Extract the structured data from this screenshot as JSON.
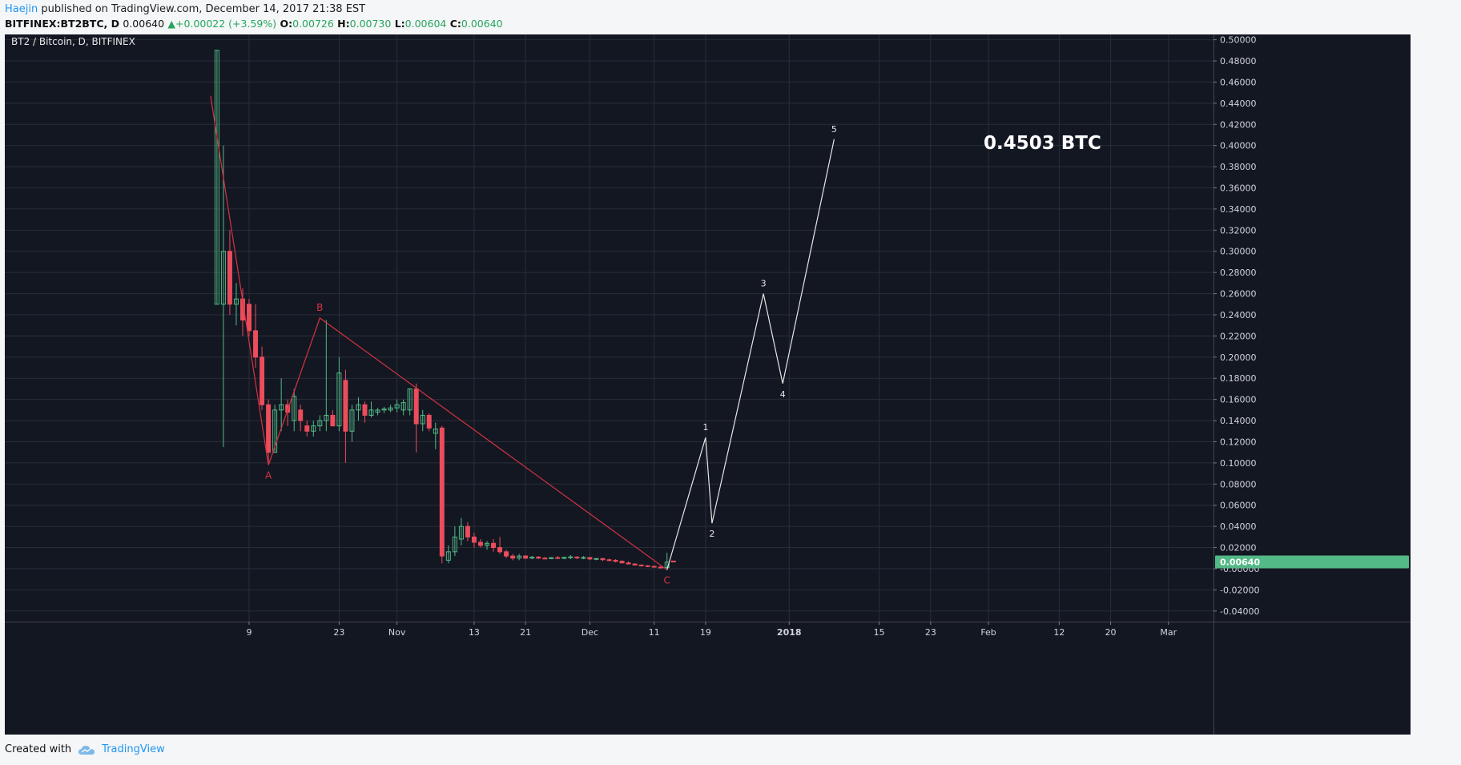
{
  "header": {
    "author": "Haejin",
    "published": "published on TradingView.com, December 14, 2017 21:38 EST"
  },
  "quote": {
    "symbol": "BITFINEX:BT2BTC, D",
    "last": "0.00640",
    "change_arrow": "▲",
    "change": "+0.00022 (+3.59%)",
    "o_label": "O:",
    "o": "0.00726",
    "h_label": "H:",
    "h": "0.00730",
    "l_label": "L:",
    "l": "0.00604",
    "c_label": "C:",
    "c": "0.00640"
  },
  "footer": {
    "created_with": "Created with",
    "brand": "TradingView",
    "brand_icon": "tradingview-cloud-icon"
  },
  "colors": {
    "background": "#131722",
    "grid": "#2a2e39",
    "up": "#53b987",
    "down": "#eb4d5c",
    "wave_abc": "#d63340",
    "projection": "#e6e6e6",
    "axis_text": "#d1d4dc",
    "price_badge": "#53b987"
  },
  "chart_data": {
    "type": "candlestick",
    "title": "BT2 / Bitcoin, D, BITFINEX",
    "annotation": "0.4503 BTC",
    "ylim": [
      -0.05,
      0.505
    ],
    "y_ticks": [
      0.5,
      0.48,
      0.46,
      0.44,
      0.42,
      0.4,
      0.38,
      0.36,
      0.34,
      0.32,
      0.3,
      0.28,
      0.26,
      0.24,
      0.22,
      0.2,
      0.18,
      0.16,
      0.14,
      0.12,
      0.1,
      0.08,
      0.06,
      0.04,
      0.02,
      0.0,
      -0.02,
      -0.04
    ],
    "y_tick_labels": [
      "0.50000",
      "0.48000",
      "0.46000",
      "0.44000",
      "0.42000",
      "0.40000",
      "0.38000",
      "0.36000",
      "0.34000",
      "0.32000",
      "0.30000",
      "0.28000",
      "0.26000",
      "0.24000",
      "0.22000",
      "0.20000",
      "0.18000",
      "0.16000",
      "0.14000",
      "0.12000",
      "0.10000",
      "0.08000",
      "0.06000",
      "0.04000",
      "0.02000",
      "-0.00000",
      "-0.02000",
      "-0.04000"
    ],
    "x_range": [
      "2017-09-01",
      "2018-03-08"
    ],
    "x_ticks": [
      {
        "date": "2017-10-09",
        "label": "9",
        "bold": false
      },
      {
        "date": "2017-10-23",
        "label": "23",
        "bold": false
      },
      {
        "date": "2017-11-01",
        "label": "Nov",
        "bold": false
      },
      {
        "date": "2017-11-13",
        "label": "13",
        "bold": false
      },
      {
        "date": "2017-11-21",
        "label": "21",
        "bold": false
      },
      {
        "date": "2017-12-01",
        "label": "Dec",
        "bold": false
      },
      {
        "date": "2017-12-11",
        "label": "11",
        "bold": false
      },
      {
        "date": "2017-12-19",
        "label": "19",
        "bold": false
      },
      {
        "date": "2018-01-01",
        "label": "2018",
        "bold": true
      },
      {
        "date": "2018-01-15",
        "label": "15",
        "bold": false
      },
      {
        "date": "2018-01-23",
        "label": "23",
        "bold": false
      },
      {
        "date": "2018-02-01",
        "label": "Feb",
        "bold": false
      },
      {
        "date": "2018-02-12",
        "label": "12",
        "bold": false
      },
      {
        "date": "2018-02-20",
        "label": "20",
        "bold": false
      },
      {
        "date": "2018-03-01",
        "label": "Mar",
        "bold": false
      }
    ],
    "last_price_label": "0.00640",
    "last_price": 0.0064,
    "candles": [
      {
        "date": "2017-10-04",
        "o": 0.25,
        "h": 0.49,
        "l": 0.25,
        "c": 0.49
      },
      {
        "date": "2017-10-05",
        "o": 0.25,
        "h": 0.4,
        "l": 0.115,
        "c": 0.3
      },
      {
        "date": "2017-10-06",
        "o": 0.3,
        "h": 0.32,
        "l": 0.24,
        "c": 0.25
      },
      {
        "date": "2017-10-07",
        "o": 0.25,
        "h": 0.27,
        "l": 0.23,
        "c": 0.255
      },
      {
        "date": "2017-10-08",
        "o": 0.255,
        "h": 0.265,
        "l": 0.22,
        "c": 0.235
      },
      {
        "date": "2017-10-09",
        "o": 0.25,
        "h": 0.255,
        "l": 0.22,
        "c": 0.225
      },
      {
        "date": "2017-10-10",
        "o": 0.225,
        "h": 0.25,
        "l": 0.19,
        "c": 0.2
      },
      {
        "date": "2017-10-11",
        "o": 0.2,
        "h": 0.21,
        "l": 0.15,
        "c": 0.155
      },
      {
        "date": "2017-10-12",
        "o": 0.155,
        "h": 0.16,
        "l": 0.1,
        "c": 0.11
      },
      {
        "date": "2017-10-13",
        "o": 0.11,
        "h": 0.155,
        "l": 0.11,
        "c": 0.15
      },
      {
        "date": "2017-10-14",
        "o": 0.15,
        "h": 0.18,
        "l": 0.13,
        "c": 0.155
      },
      {
        "date": "2017-10-15",
        "o": 0.155,
        "h": 0.16,
        "l": 0.135,
        "c": 0.148
      },
      {
        "date": "2017-10-16",
        "o": 0.14,
        "h": 0.17,
        "l": 0.13,
        "c": 0.163
      },
      {
        "date": "2017-10-17",
        "o": 0.15,
        "h": 0.155,
        "l": 0.13,
        "c": 0.14
      },
      {
        "date": "2017-10-18",
        "o": 0.135,
        "h": 0.14,
        "l": 0.125,
        "c": 0.13
      },
      {
        "date": "2017-10-19",
        "o": 0.13,
        "h": 0.14,
        "l": 0.125,
        "c": 0.135
      },
      {
        "date": "2017-10-20",
        "o": 0.135,
        "h": 0.145,
        "l": 0.13,
        "c": 0.14
      },
      {
        "date": "2017-10-21",
        "o": 0.14,
        "h": 0.235,
        "l": 0.13,
        "c": 0.145
      },
      {
        "date": "2017-10-22",
        "o": 0.145,
        "h": 0.15,
        "l": 0.135,
        "c": 0.135
      },
      {
        "date": "2017-10-23",
        "o": 0.135,
        "h": 0.2,
        "l": 0.13,
        "c": 0.185
      },
      {
        "date": "2017-10-24",
        "o": 0.178,
        "h": 0.188,
        "l": 0.1,
        "c": 0.13
      },
      {
        "date": "2017-10-25",
        "o": 0.13,
        "h": 0.155,
        "l": 0.12,
        "c": 0.15
      },
      {
        "date": "2017-10-26",
        "o": 0.15,
        "h": 0.162,
        "l": 0.14,
        "c": 0.155
      },
      {
        "date": "2017-10-27",
        "o": 0.155,
        "h": 0.158,
        "l": 0.138,
        "c": 0.145
      },
      {
        "date": "2017-10-28",
        "o": 0.145,
        "h": 0.158,
        "l": 0.143,
        "c": 0.15
      },
      {
        "date": "2017-10-29",
        "o": 0.148,
        "h": 0.152,
        "l": 0.145,
        "c": 0.15
      },
      {
        "date": "2017-10-30",
        "o": 0.15,
        "h": 0.153,
        "l": 0.147,
        "c": 0.151
      },
      {
        "date": "2017-10-31",
        "o": 0.15,
        "h": 0.155,
        "l": 0.148,
        "c": 0.152
      },
      {
        "date": "2017-11-01",
        "o": 0.152,
        "h": 0.16,
        "l": 0.148,
        "c": 0.155
      },
      {
        "date": "2017-11-02",
        "o": 0.15,
        "h": 0.16,
        "l": 0.145,
        "c": 0.157
      },
      {
        "date": "2017-11-03",
        "o": 0.15,
        "h": 0.17,
        "l": 0.145,
        "c": 0.17
      },
      {
        "date": "2017-11-04",
        "o": 0.17,
        "h": 0.175,
        "l": 0.11,
        "c": 0.137
      },
      {
        "date": "2017-11-05",
        "o": 0.137,
        "h": 0.15,
        "l": 0.13,
        "c": 0.145
      },
      {
        "date": "2017-11-06",
        "o": 0.145,
        "h": 0.147,
        "l": 0.13,
        "c": 0.133
      },
      {
        "date": "2017-11-07",
        "o": 0.128,
        "h": 0.138,
        "l": 0.113,
        "c": 0.132
      },
      {
        "date": "2017-11-08",
        "o": 0.133,
        "h": 0.135,
        "l": 0.005,
        "c": 0.012
      },
      {
        "date": "2017-11-09",
        "o": 0.008,
        "h": 0.022,
        "l": 0.005,
        "c": 0.016
      },
      {
        "date": "2017-11-10",
        "o": 0.016,
        "h": 0.04,
        "l": 0.012,
        "c": 0.03
      },
      {
        "date": "2017-11-11",
        "o": 0.028,
        "h": 0.048,
        "l": 0.022,
        "c": 0.04
      },
      {
        "date": "2017-11-12",
        "o": 0.04,
        "h": 0.044,
        "l": 0.026,
        "c": 0.03
      },
      {
        "date": "2017-11-13",
        "o": 0.03,
        "h": 0.034,
        "l": 0.02,
        "c": 0.025
      },
      {
        "date": "2017-11-14",
        "o": 0.025,
        "h": 0.028,
        "l": 0.02,
        "c": 0.022
      },
      {
        "date": "2017-11-15",
        "o": 0.022,
        "h": 0.026,
        "l": 0.018,
        "c": 0.024
      },
      {
        "date": "2017-11-16",
        "o": 0.024,
        "h": 0.028,
        "l": 0.016,
        "c": 0.02
      },
      {
        "date": "2017-11-17",
        "o": 0.02,
        "h": 0.03,
        "l": 0.014,
        "c": 0.016
      },
      {
        "date": "2017-11-18",
        "o": 0.016,
        "h": 0.018,
        "l": 0.01,
        "c": 0.012
      },
      {
        "date": "2017-11-19",
        "o": 0.012,
        "h": 0.014,
        "l": 0.008,
        "c": 0.01
      },
      {
        "date": "2017-11-20",
        "o": 0.01,
        "h": 0.014,
        "l": 0.008,
        "c": 0.012
      },
      {
        "date": "2017-11-21",
        "o": 0.012,
        "h": 0.013,
        "l": 0.009,
        "c": 0.01
      },
      {
        "date": "2017-11-22",
        "o": 0.01,
        "h": 0.012,
        "l": 0.009,
        "c": 0.011
      },
      {
        "date": "2017-11-23",
        "o": 0.011,
        "h": 0.012,
        "l": 0.009,
        "c": 0.01
      },
      {
        "date": "2017-11-24",
        "o": 0.01,
        "h": 0.011,
        "l": 0.009,
        "c": 0.0095
      },
      {
        "date": "2017-11-25",
        "o": 0.0095,
        "h": 0.011,
        "l": 0.009,
        "c": 0.0105
      },
      {
        "date": "2017-11-26",
        "o": 0.0105,
        "h": 0.012,
        "l": 0.009,
        "c": 0.0098
      },
      {
        "date": "2017-11-27",
        "o": 0.0098,
        "h": 0.011,
        "l": 0.009,
        "c": 0.0108
      },
      {
        "date": "2017-11-28",
        "o": 0.0108,
        "h": 0.013,
        "l": 0.009,
        "c": 0.0112
      },
      {
        "date": "2017-11-29",
        "o": 0.011,
        "h": 0.012,
        "l": 0.009,
        "c": 0.0102
      },
      {
        "date": "2017-11-30",
        "o": 0.0102,
        "h": 0.012,
        "l": 0.009,
        "c": 0.0106
      },
      {
        "date": "2017-12-01",
        "o": 0.0106,
        "h": 0.011,
        "l": 0.008,
        "c": 0.0092
      },
      {
        "date": "2017-12-02",
        "o": 0.0092,
        "h": 0.01,
        "l": 0.008,
        "c": 0.0096
      },
      {
        "date": "2017-12-03",
        "o": 0.0096,
        "h": 0.01,
        "l": 0.007,
        "c": 0.0085
      },
      {
        "date": "2017-12-04",
        "o": 0.0085,
        "h": 0.0095,
        "l": 0.007,
        "c": 0.008
      },
      {
        "date": "2017-12-05",
        "o": 0.008,
        "h": 0.009,
        "l": 0.006,
        "c": 0.007
      },
      {
        "date": "2017-12-06",
        "o": 0.007,
        "h": 0.008,
        "l": 0.005,
        "c": 0.0055
      },
      {
        "date": "2017-12-07",
        "o": 0.0055,
        "h": 0.007,
        "l": 0.004,
        "c": 0.0045
      },
      {
        "date": "2017-12-08",
        "o": 0.0045,
        "h": 0.005,
        "l": 0.003,
        "c": 0.0035
      },
      {
        "date": "2017-12-09",
        "o": 0.0035,
        "h": 0.004,
        "l": 0.002,
        "c": 0.0028
      },
      {
        "date": "2017-12-10",
        "o": 0.0028,
        "h": 0.0035,
        "l": 0.0015,
        "c": 0.0022
      },
      {
        "date": "2017-12-11",
        "o": 0.0022,
        "h": 0.003,
        "l": 0.001,
        "c": 0.0015
      },
      {
        "date": "2017-12-12",
        "o": 0.0015,
        "h": 0.0025,
        "l": 0.0005,
        "c": 0.001
      },
      {
        "date": "2017-12-13",
        "o": 0.001,
        "h": 0.015,
        "l": 0.0005,
        "c": 0.0062
      },
      {
        "date": "2017-12-14",
        "o": 0.00726,
        "h": 0.0073,
        "l": 0.00604,
        "c": 0.0064
      }
    ],
    "wave_abc": {
      "points": [
        {
          "date": "2017-10-03",
          "y": 0.447
        },
        {
          "date": "2017-10-12",
          "y": 0.098
        },
        {
          "date": "2017-10-20",
          "y": 0.237
        },
        {
          "date": "2017-12-13",
          "y": -0.001
        }
      ],
      "labels": [
        {
          "label": "A",
          "date": "2017-10-12",
          "y": 0.098,
          "pos": "below"
        },
        {
          "label": "B",
          "date": "2017-10-20",
          "y": 0.237,
          "pos": "above"
        },
        {
          "label": "C",
          "date": "2017-12-13",
          "y": -0.001,
          "pos": "below"
        }
      ]
    },
    "projection": {
      "points": [
        {
          "date": "2017-12-13",
          "y": -0.001
        },
        {
          "date": "2017-12-19",
          "y": 0.124
        },
        {
          "date": "2017-12-20",
          "y": 0.043
        },
        {
          "date": "2017-12-28",
          "y": 0.26
        },
        {
          "date": "2017-12-31",
          "y": 0.175
        },
        {
          "date": "2018-01-08",
          "y": 0.406
        }
      ],
      "labels": [
        {
          "label": "1",
          "date": "2017-12-19",
          "y": 0.124,
          "pos": "above"
        },
        {
          "label": "2",
          "date": "2017-12-20",
          "y": 0.043,
          "pos": "below"
        },
        {
          "label": "3",
          "date": "2017-12-28",
          "y": 0.26,
          "pos": "above"
        },
        {
          "label": "4",
          "date": "2017-12-31",
          "y": 0.175,
          "pos": "below"
        },
        {
          "label": "5",
          "date": "2018-01-08",
          "y": 0.406,
          "pos": "above"
        }
      ]
    }
  }
}
